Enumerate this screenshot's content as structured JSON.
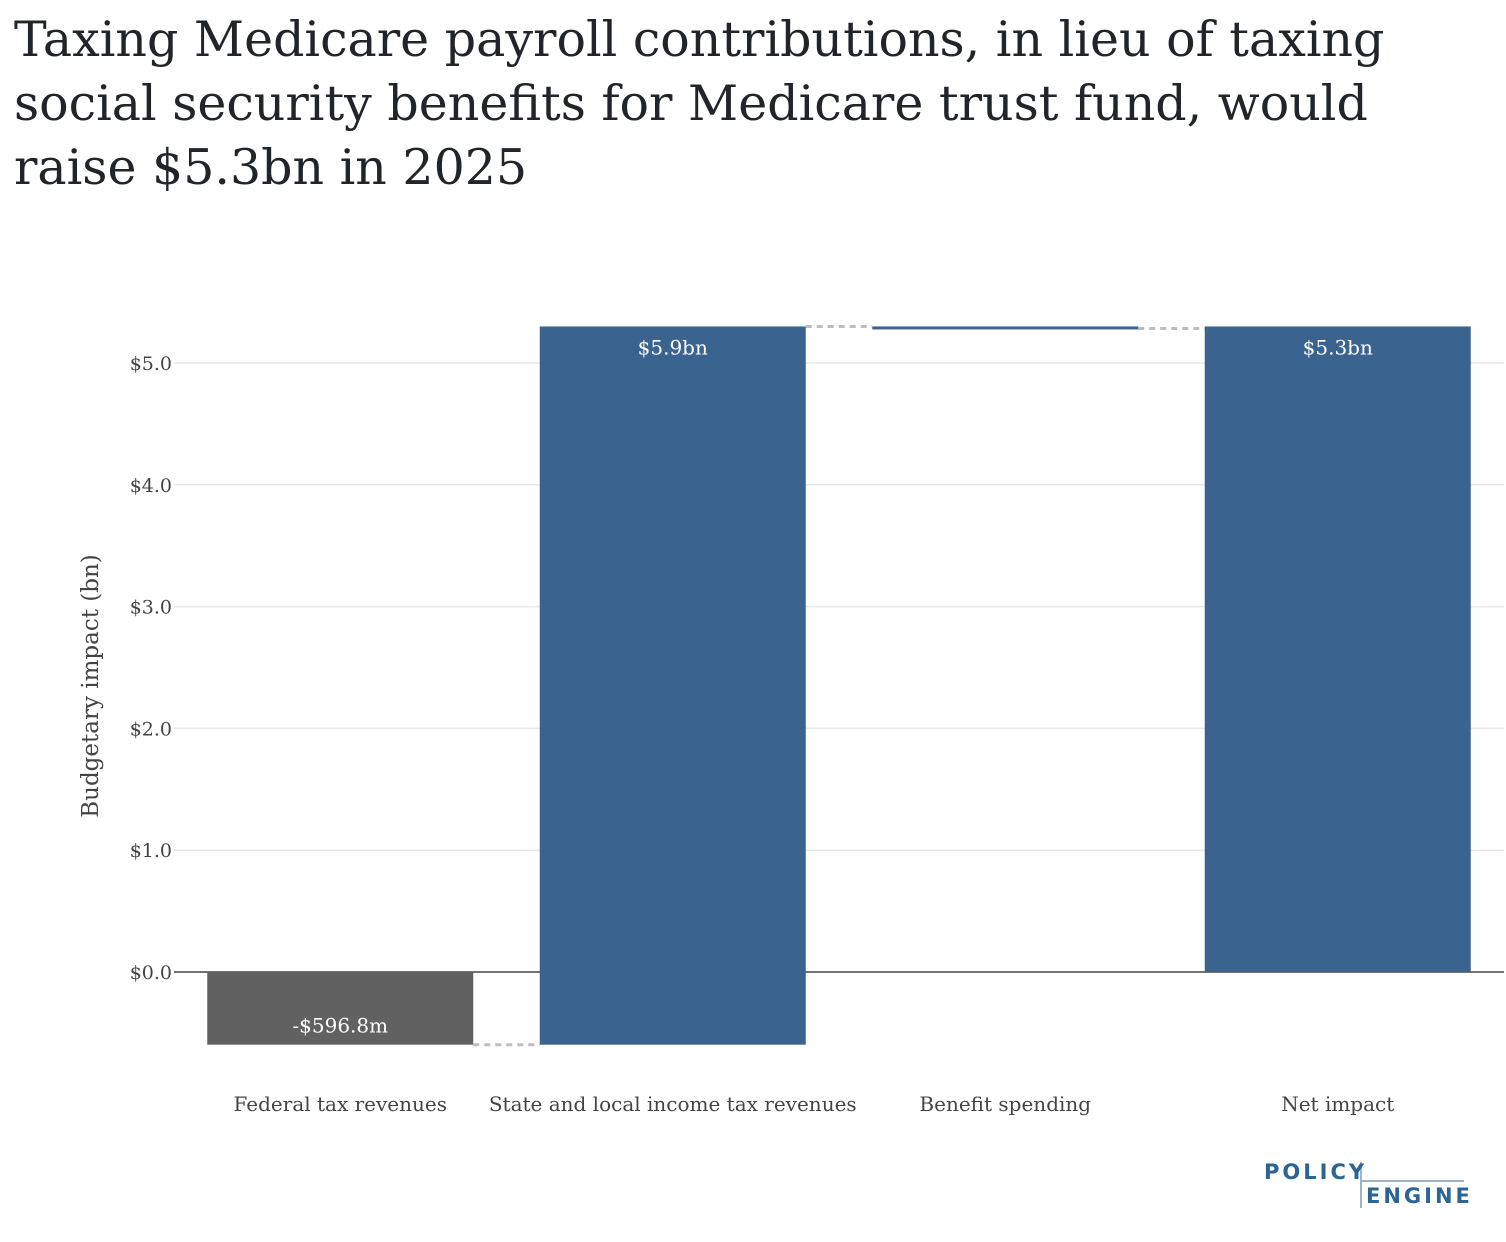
{
  "title": "Taxing Medicare payroll contributions, in lieu of taxing social security benefits for Medicare trust fund, would raise $5.3bn in 2025",
  "chart_data": {
    "type": "bar",
    "subtype": "waterfall",
    "categories": [
      "Federal tax revenues",
      "State and local income tax revenues",
      "Benefit spending",
      "Net impact"
    ],
    "values": [
      -0.5968,
      5.9,
      -0.02,
      5.3
    ],
    "data_labels": [
      "-$596.8m",
      "$5.9bn",
      "",
      "$5.3bn"
    ],
    "ylabel": "Budgetary impact (bn)",
    "ylim": [
      -0.62,
      5.3
    ],
    "yticks": [
      0,
      1,
      2,
      3,
      4,
      5
    ],
    "ytick_labels": [
      "$0.0",
      "$1.0",
      "$2.0",
      "$3.0",
      "$4.0",
      "$5.0"
    ],
    "grid": true,
    "legend": "none",
    "colors": {
      "negative": "#616161",
      "positive": "#3B6390",
      "connector": "#BDBDBD",
      "grid": "#E8E8E8",
      "zero": "#444444"
    }
  },
  "logo": {
    "line1": "POLICY",
    "line2": "ENGINE"
  }
}
